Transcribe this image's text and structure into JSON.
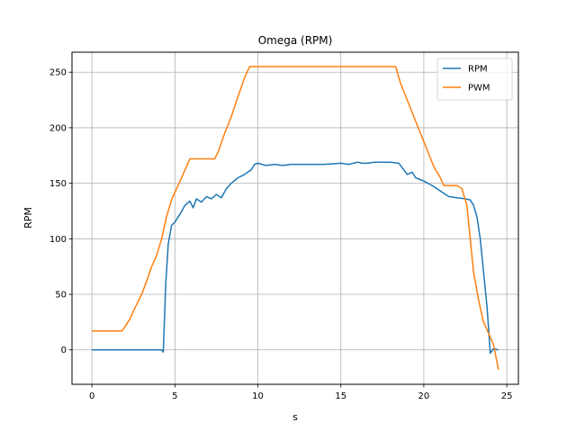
{
  "chart_data": {
    "type": "line",
    "title": "Omega (RPM)",
    "xlabel": "s",
    "ylabel": "RPM",
    "xlim": [
      -1.2,
      25.7
    ],
    "ylim": [
      -31,
      268
    ],
    "xticks": [
      0,
      5,
      10,
      15,
      20,
      25
    ],
    "yticks": [
      0,
      50,
      100,
      150,
      200,
      250
    ],
    "grid": true,
    "legend_position": "top-right",
    "series": [
      {
        "name": "RPM",
        "color": "#1f77b4",
        "points": [
          [
            0,
            0
          ],
          [
            1,
            0
          ],
          [
            2,
            0
          ],
          [
            3,
            0
          ],
          [
            4,
            0
          ],
          [
            4.2,
            0
          ],
          [
            4.3,
            -2
          ],
          [
            4.45,
            60
          ],
          [
            4.6,
            95
          ],
          [
            4.8,
            112
          ],
          [
            5,
            115
          ],
          [
            5.3,
            122
          ],
          [
            5.6,
            130
          ],
          [
            5.9,
            134
          ],
          [
            6.1,
            128
          ],
          [
            6.3,
            136
          ],
          [
            6.6,
            133
          ],
          [
            6.9,
            138
          ],
          [
            7.2,
            136
          ],
          [
            7.5,
            140
          ],
          [
            7.8,
            137
          ],
          [
            8.1,
            145
          ],
          [
            8.4,
            150
          ],
          [
            8.8,
            155
          ],
          [
            9.2,
            158
          ],
          [
            9.6,
            162
          ],
          [
            9.8,
            167
          ],
          [
            10,
            168
          ],
          [
            10.5,
            166
          ],
          [
            11,
            167
          ],
          [
            11.5,
            166
          ],
          [
            12,
            167
          ],
          [
            13,
            167
          ],
          [
            14,
            167
          ],
          [
            15,
            168
          ],
          [
            15.5,
            167
          ],
          [
            16,
            169
          ],
          [
            16.3,
            168
          ],
          [
            16.6,
            168
          ],
          [
            17,
            169
          ],
          [
            18,
            169
          ],
          [
            18.5,
            168
          ],
          [
            19,
            158
          ],
          [
            19.3,
            160
          ],
          [
            19.5,
            155
          ],
          [
            20,
            152
          ],
          [
            20.5,
            148
          ],
          [
            21,
            143
          ],
          [
            21.5,
            138
          ],
          [
            22,
            137
          ],
          [
            22.5,
            136
          ],
          [
            22.8,
            135
          ],
          [
            23,
            130
          ],
          [
            23.2,
            120
          ],
          [
            23.4,
            100
          ],
          [
            23.6,
            70
          ],
          [
            23.8,
            40
          ],
          [
            23.9,
            20
          ],
          [
            24,
            -3
          ],
          [
            24.2,
            1
          ],
          [
            24.5,
            0
          ]
        ]
      },
      {
        "name": "PWM",
        "color": "#ff7f0e",
        "points": [
          [
            0,
            17
          ],
          [
            0.5,
            17
          ],
          [
            1,
            17
          ],
          [
            1.5,
            17
          ],
          [
            1.8,
            17
          ],
          [
            2,
            21
          ],
          [
            2.3,
            28
          ],
          [
            2.6,
            38
          ],
          [
            3,
            50
          ],
          [
            3.3,
            62
          ],
          [
            3.6,
            75
          ],
          [
            3.9,
            85
          ],
          [
            4.2,
            100
          ],
          [
            4.5,
            120
          ],
          [
            4.8,
            135
          ],
          [
            5.1,
            145
          ],
          [
            5.4,
            155
          ],
          [
            5.7,
            165
          ],
          [
            5.9,
            172
          ],
          [
            6.5,
            172
          ],
          [
            7,
            172
          ],
          [
            7.4,
            172
          ],
          [
            7.6,
            178
          ],
          [
            8,
            195
          ],
          [
            8.4,
            210
          ],
          [
            8.8,
            228
          ],
          [
            9.2,
            245
          ],
          [
            9.5,
            255
          ],
          [
            10,
            255
          ],
          [
            12,
            255
          ],
          [
            14,
            255
          ],
          [
            16,
            255
          ],
          [
            18,
            255
          ],
          [
            18.3,
            255
          ],
          [
            18.6,
            240
          ],
          [
            19,
            225
          ],
          [
            19.4,
            210
          ],
          [
            19.8,
            195
          ],
          [
            20.2,
            180
          ],
          [
            20.6,
            165
          ],
          [
            21,
            155
          ],
          [
            21.2,
            148
          ],
          [
            21.6,
            148
          ],
          [
            22,
            148
          ],
          [
            22.3,
            145
          ],
          [
            22.6,
            130
          ],
          [
            22.8,
            100
          ],
          [
            23,
            70
          ],
          [
            23.3,
            45
          ],
          [
            23.6,
            25
          ],
          [
            23.9,
            15
          ],
          [
            24.2,
            5
          ],
          [
            24.4,
            -10
          ],
          [
            24.5,
            -18
          ]
        ]
      }
    ]
  }
}
